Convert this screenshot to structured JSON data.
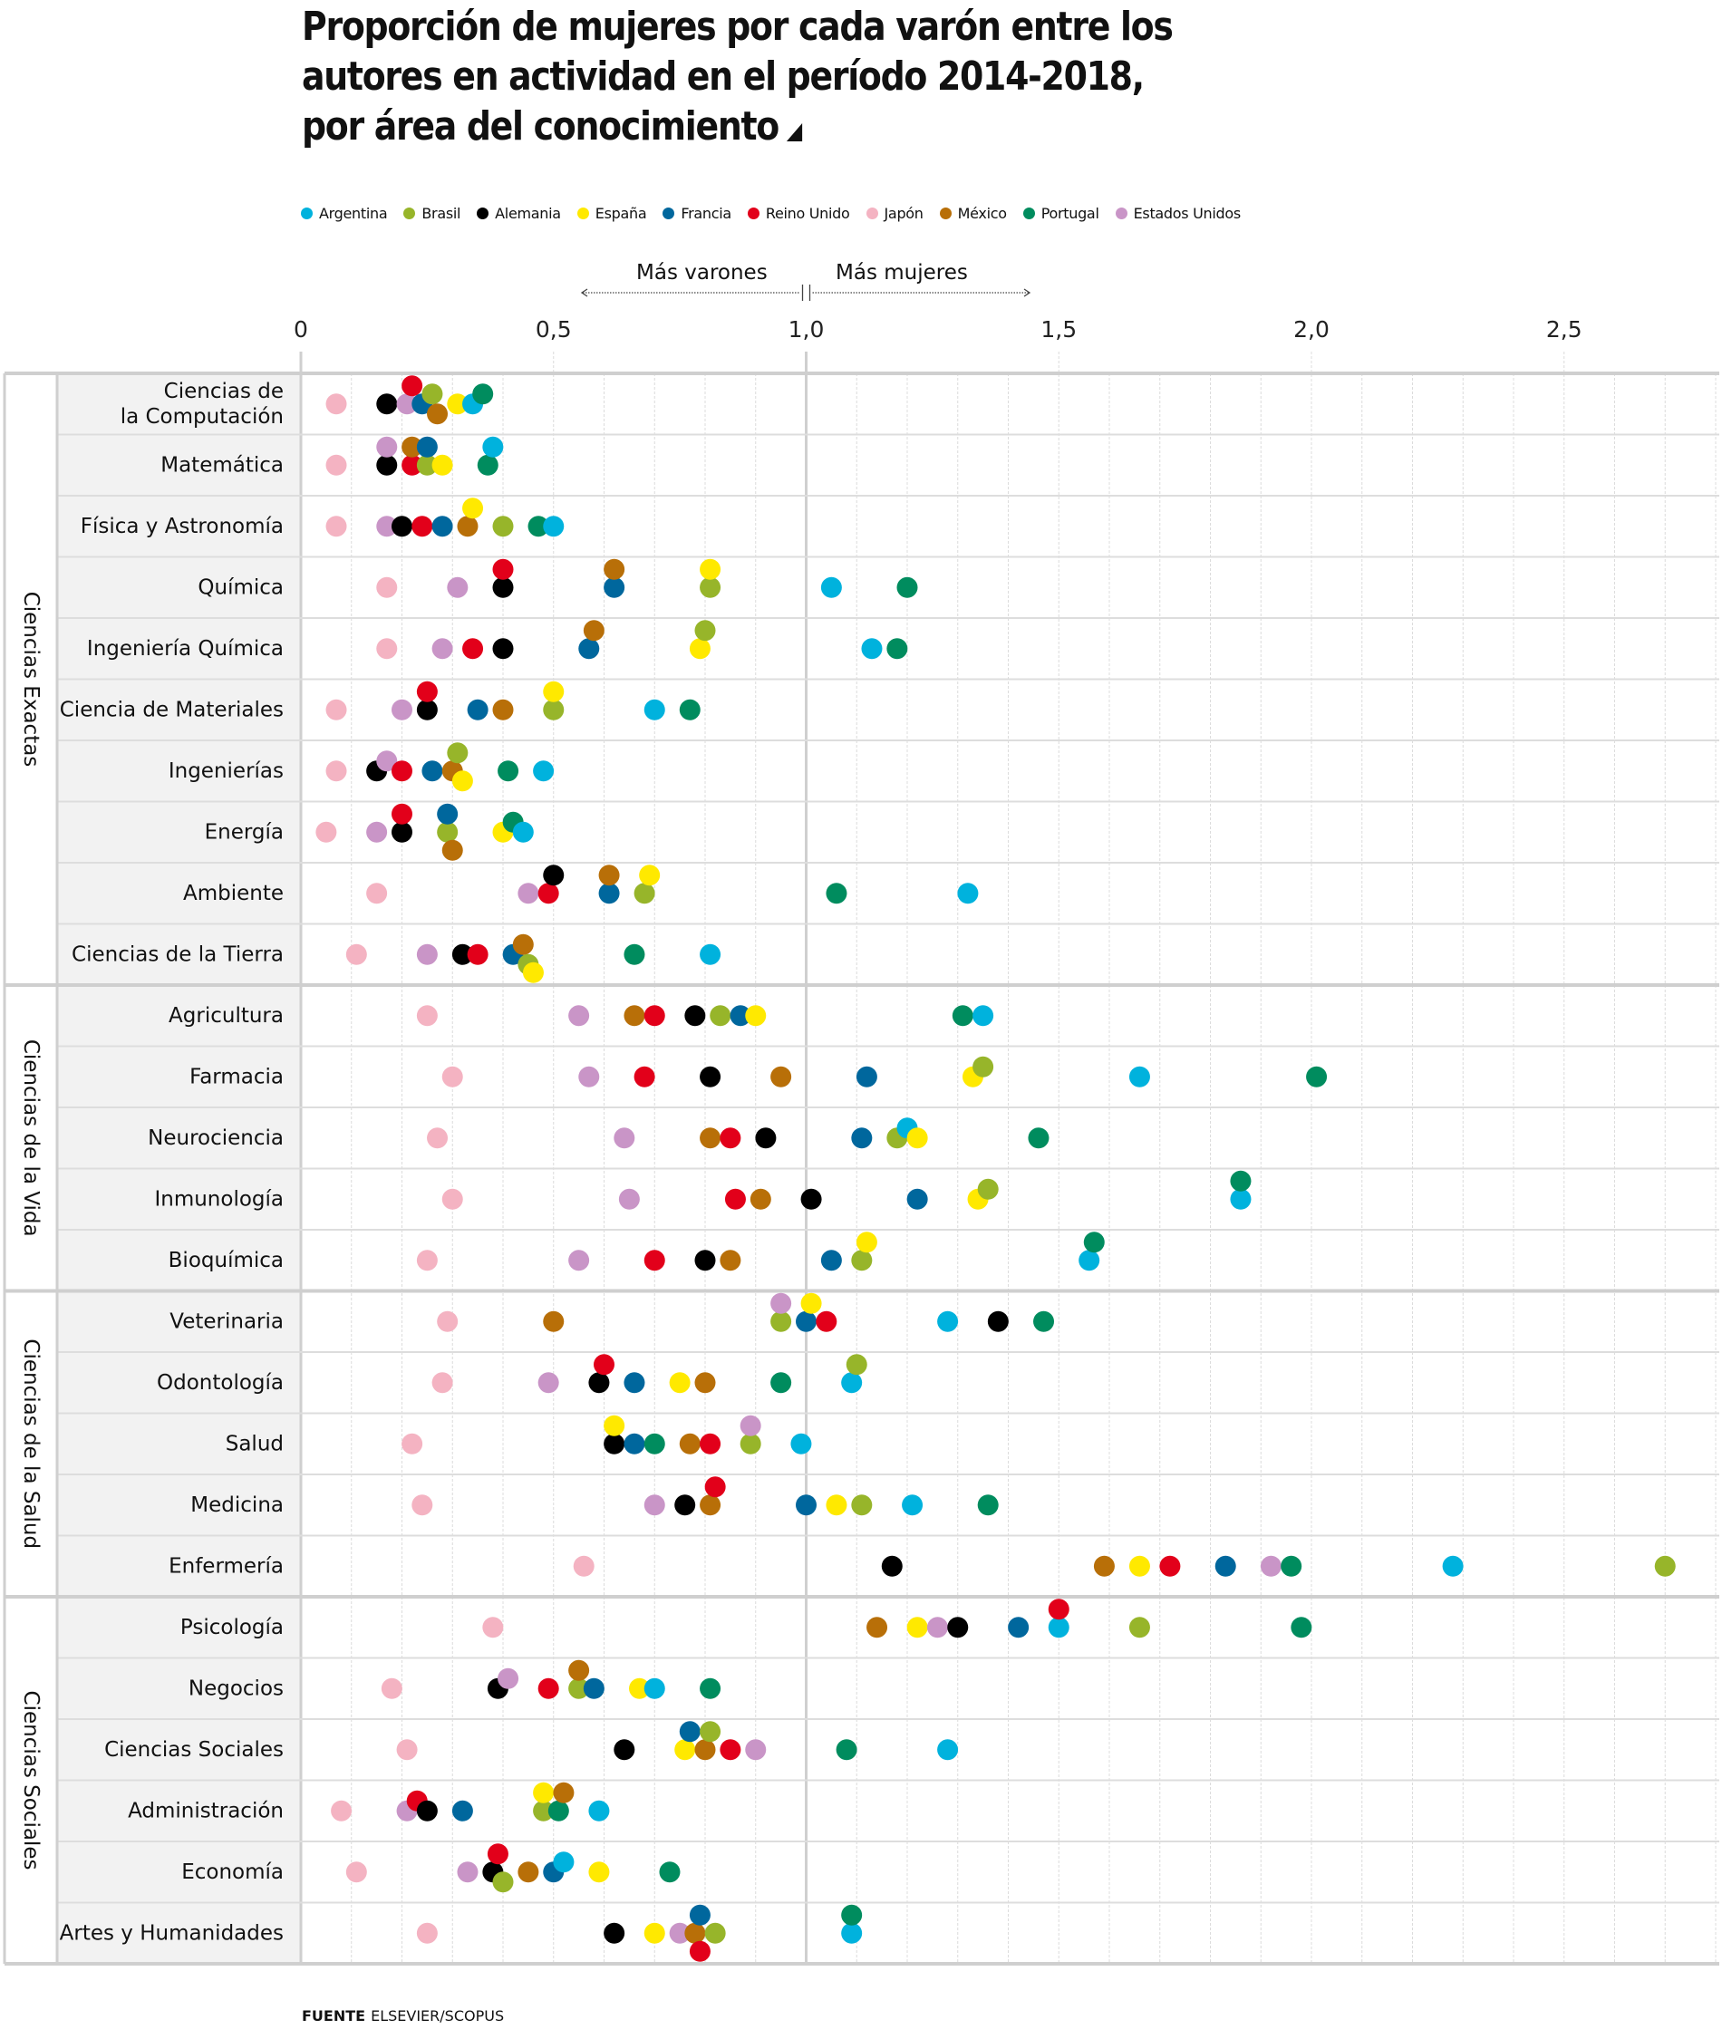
{
  "title": {
    "lines": [
      "Proporción de mujeres por cada varón entre los",
      "autores en actividad en el período 2014-2018,",
      "por área del conocimiento"
    ],
    "marker_icon": "triangle-corner-icon"
  },
  "direction": {
    "left_label": "Más varones",
    "right_label": "Más mujeres"
  },
  "footer": {
    "label": "FUENTE",
    "source": "ELSEVIER/SCOPUS"
  },
  "chart_data": {
    "type": "scatter",
    "title": "Proporción de mujeres por cada varón entre los autores en actividad en el período 2014-2018, por área del conocimiento",
    "xlabel": "",
    "ylabel": "",
    "xlim": [
      0,
      2.8
    ],
    "x_ticks": [
      0,
      0.5,
      1.0,
      1.5,
      2.0,
      2.5
    ],
    "x_tick_labels": [
      "0",
      "0,5",
      "1,0",
      "1,5",
      "2,0",
      "2,5"
    ],
    "reference_line": 1.0,
    "grid": true,
    "legend_position": "top-left",
    "series": [
      {
        "name": "Argentina",
        "color": "#00b2dd"
      },
      {
        "name": "Brasil",
        "color": "#97b52a"
      },
      {
        "name": "Alemania",
        "color": "#000000"
      },
      {
        "name": "España",
        "color": "#ffe900"
      },
      {
        "name": "Francia",
        "color": "#00679d"
      },
      {
        "name": "Reino Unido",
        "color": "#e2001a"
      },
      {
        "name": "Japón",
        "color": "#f4b3c2"
      },
      {
        "name": "México",
        "color": "#b86f08"
      },
      {
        "name": "Portugal",
        "color": "#008c5e"
      },
      {
        "name": "Estados Unidos",
        "color": "#c995c7"
      }
    ],
    "groups": [
      {
        "name": "Ciencias Exactas",
        "rows": [
          {
            "label": [
              "Ciencias de",
              "la Computación"
            ],
            "values": {
              "Argentina": 0.34,
              "Brasil": 0.26,
              "Alemania": 0.17,
              "España": 0.31,
              "Francia": 0.24,
              "Reino Unido": 0.22,
              "Japón": 0.07,
              "México": 0.27,
              "Portugal": 0.36,
              "Estados Unidos": 0.21
            }
          },
          {
            "label": [
              "Matemática"
            ],
            "values": {
              "Argentina": 0.38,
              "Brasil": 0.25,
              "Alemania": 0.17,
              "España": 0.28,
              "Francia": 0.25,
              "Reino Unido": 0.22,
              "Japón": 0.07,
              "México": 0.22,
              "Portugal": 0.37,
              "Estados Unidos": 0.17
            }
          },
          {
            "label": [
              "Física y Astronomía"
            ],
            "values": {
              "Argentina": 0.5,
              "Brasil": 0.4,
              "Alemania": 0.2,
              "España": 0.34,
              "Francia": 0.28,
              "Reino Unido": 0.24,
              "Japón": 0.07,
              "México": 0.33,
              "Portugal": 0.47,
              "Estados Unidos": 0.17
            }
          },
          {
            "label": [
              "Química"
            ],
            "values": {
              "Argentina": 1.05,
              "Brasil": 0.81,
              "Alemania": 0.4,
              "España": 0.81,
              "Francia": 0.62,
              "Reino Unido": 0.4,
              "Japón": 0.17,
              "México": 0.62,
              "Portugal": 1.2,
              "Estados Unidos": 0.31
            }
          },
          {
            "label": [
              "Ingeniería Química"
            ],
            "values": {
              "Argentina": 1.13,
              "Brasil": 0.8,
              "Alemania": 0.4,
              "España": 0.79,
              "Francia": 0.57,
              "Reino Unido": 0.34,
              "Japón": 0.17,
              "México": 0.58,
              "Portugal": 1.18,
              "Estados Unidos": 0.28
            }
          },
          {
            "label": [
              "Ciencia de Materiales"
            ],
            "values": {
              "Argentina": 0.7,
              "Brasil": 0.5,
              "Alemania": 0.25,
              "España": 0.5,
              "Francia": 0.35,
              "Reino Unido": 0.25,
              "Japón": 0.07,
              "México": 0.4,
              "Portugal": 0.77,
              "Estados Unidos": 0.2
            }
          },
          {
            "label": [
              "Ingenierías"
            ],
            "values": {
              "Argentina": 0.48,
              "Brasil": 0.31,
              "Alemania": 0.15,
              "España": 0.32,
              "Francia": 0.26,
              "Reino Unido": 0.2,
              "Japón": 0.07,
              "México": 0.3,
              "Portugal": 0.41,
              "Estados Unidos": 0.17
            }
          },
          {
            "label": [
              "Energía"
            ],
            "values": {
              "Argentina": 0.44,
              "Brasil": 0.29,
              "Alemania": 0.2,
              "España": 0.4,
              "Francia": 0.29,
              "Reino Unido": 0.2,
              "Japón": 0.05,
              "México": 0.3,
              "Portugal": 0.42,
              "Estados Unidos": 0.15
            }
          },
          {
            "label": [
              "Ambiente"
            ],
            "values": {
              "Argentina": 1.32,
              "Brasil": 0.68,
              "Alemania": 0.5,
              "España": 0.69,
              "Francia": 0.61,
              "Reino Unido": 0.49,
              "Japón": 0.15,
              "México": 0.61,
              "Portugal": 1.06,
              "Estados Unidos": 0.45
            }
          },
          {
            "label": [
              "Ciencias de la Tierra"
            ],
            "values": {
              "Argentina": 0.81,
              "Brasil": 0.45,
              "Alemania": 0.32,
              "España": 0.46,
              "Francia": 0.42,
              "Reino Unido": 0.35,
              "Japón": 0.11,
              "México": 0.44,
              "Portugal": 0.66,
              "Estados Unidos": 0.25
            }
          }
        ]
      },
      {
        "name": "Ciencias de la Vida",
        "rows": [
          {
            "label": [
              "Agricultura"
            ],
            "values": {
              "Argentina": 1.35,
              "Brasil": 0.83,
              "Alemania": 0.78,
              "España": 0.9,
              "Francia": 0.87,
              "Reino Unido": 0.7,
              "Japón": 0.25,
              "México": 0.66,
              "Portugal": 1.31,
              "Estados Unidos": 0.55
            }
          },
          {
            "label": [
              "Farmacia"
            ],
            "values": {
              "Argentina": 1.66,
              "Brasil": 1.35,
              "Alemania": 0.81,
              "España": 1.33,
              "Francia": 1.12,
              "Reino Unido": 0.68,
              "Japón": 0.3,
              "México": 0.95,
              "Portugal": 2.01,
              "Estados Unidos": 0.57
            }
          },
          {
            "label": [
              "Neurociencia"
            ],
            "values": {
              "Argentina": 1.2,
              "Brasil": 1.18,
              "Alemania": 0.92,
              "España": 1.22,
              "Francia": 1.11,
              "Reino Unido": 0.85,
              "Japón": 0.27,
              "México": 0.81,
              "Portugal": 1.46,
              "Estados Unidos": 0.64
            }
          },
          {
            "label": [
              "Inmunología"
            ],
            "values": {
              "Argentina": 1.86,
              "Brasil": 1.36,
              "Alemania": 1.01,
              "España": 1.34,
              "Francia": 1.22,
              "Reino Unido": 0.86,
              "Japón": 0.3,
              "México": 0.91,
              "Portugal": 1.86,
              "Estados Unidos": 0.65
            }
          },
          {
            "label": [
              "Bioquímica"
            ],
            "values": {
              "Argentina": 1.56,
              "Brasil": 1.11,
              "Alemania": 0.8,
              "España": 1.12,
              "Francia": 1.05,
              "Reino Unido": 0.7,
              "Japón": 0.25,
              "México": 0.85,
              "Portugal": 1.57,
              "Estados Unidos": 0.55
            }
          }
        ]
      },
      {
        "name": "Ciencias de la Salud",
        "rows": [
          {
            "label": [
              "Veterinaria"
            ],
            "values": {
              "Argentina": 1.28,
              "Brasil": 0.95,
              "Alemania": 1.38,
              "España": 1.01,
              "Francia": 1.0,
              "Reino Unido": 1.04,
              "Japón": 0.29,
              "México": 0.5,
              "Portugal": 1.47,
              "Estados Unidos": 0.95
            }
          },
          {
            "label": [
              "Odontología"
            ],
            "values": {
              "Argentina": 1.09,
              "Brasil": 1.1,
              "Alemania": 0.59,
              "España": 0.75,
              "Francia": 0.66,
              "Reino Unido": 0.6,
              "Japón": 0.28,
              "México": 0.8,
              "Portugal": 0.95,
              "Estados Unidos": 0.49
            }
          },
          {
            "label": [
              "Salud"
            ],
            "values": {
              "Argentina": 0.99,
              "Brasil": 0.89,
              "Alemania": 0.62,
              "España": 0.62,
              "Francia": 0.66,
              "Reino Unido": 0.81,
              "Japón": 0.22,
              "México": 0.77,
              "Portugal": 0.7,
              "Estados Unidos": 0.89
            }
          },
          {
            "label": [
              "Medicina"
            ],
            "values": {
              "Argentina": 1.21,
              "Brasil": 1.11,
              "Alemania": 0.76,
              "España": 1.06,
              "Francia": 1.0,
              "Reino Unido": 0.82,
              "Japón": 0.24,
              "México": 0.81,
              "Portugal": 1.36,
              "Estados Unidos": 0.7
            }
          },
          {
            "label": [
              "Enfermería"
            ],
            "values": {
              "Argentina": 2.28,
              "Brasil": 2.7,
              "Alemania": 1.17,
              "España": 1.66,
              "Francia": 1.83,
              "Reino Unido": 1.72,
              "Japón": 0.56,
              "México": 1.59,
              "Portugal": 1.96,
              "Estados Unidos": 1.92
            }
          }
        ]
      },
      {
        "name": "Ciencias Sociales",
        "rows": [
          {
            "label": [
              "Psicología"
            ],
            "values": {
              "Argentina": 1.5,
              "Brasil": 1.66,
              "Alemania": 1.3,
              "España": 1.22,
              "Francia": 1.42,
              "Reino Unido": 1.5,
              "Japón": 0.38,
              "México": 1.14,
              "Portugal": 1.98,
              "Estados Unidos": 1.26
            }
          },
          {
            "label": [
              "Negocios"
            ],
            "values": {
              "Argentina": 0.7,
              "Brasil": 0.55,
              "Alemania": 0.39,
              "España": 0.67,
              "Francia": 0.58,
              "Reino Unido": 0.49,
              "Japón": 0.18,
              "México": 0.55,
              "Portugal": 0.81,
              "Estados Unidos": 0.41
            }
          },
          {
            "label": [
              "Ciencias Sociales"
            ],
            "values": {
              "Argentina": 1.28,
              "Brasil": 0.81,
              "Alemania": 0.64,
              "España": 0.76,
              "Francia": 0.77,
              "Reino Unido": 0.85,
              "Japón": 0.21,
              "México": 0.8,
              "Portugal": 1.08,
              "Estados Unidos": 0.9
            }
          },
          {
            "label": [
              "Administración"
            ],
            "values": {
              "Argentina": 0.59,
              "Brasil": 0.48,
              "Alemania": 0.25,
              "España": 0.48,
              "Francia": 0.32,
              "Reino Unido": 0.23,
              "Japón": 0.08,
              "México": 0.52,
              "Portugal": 0.51,
              "Estados Unidos": 0.21
            }
          },
          {
            "label": [
              "Economía"
            ],
            "values": {
              "Argentina": 0.52,
              "Brasil": 0.4,
              "Alemania": 0.38,
              "España": 0.59,
              "Francia": 0.5,
              "Reino Unido": 0.39,
              "Japón": 0.11,
              "México": 0.45,
              "Portugal": 0.73,
              "Estados Unidos": 0.33
            }
          },
          {
            "label": [
              "Artes y Humanidades"
            ],
            "values": {
              "Argentina": 1.09,
              "Brasil": 0.82,
              "Alemania": 0.62,
              "España": 0.7,
              "Francia": 0.79,
              "Reino Unido": 0.79,
              "Japón": 0.25,
              "México": 0.78,
              "Portugal": 1.09,
              "Estados Unidos": 0.75
            }
          }
        ]
      }
    ]
  }
}
